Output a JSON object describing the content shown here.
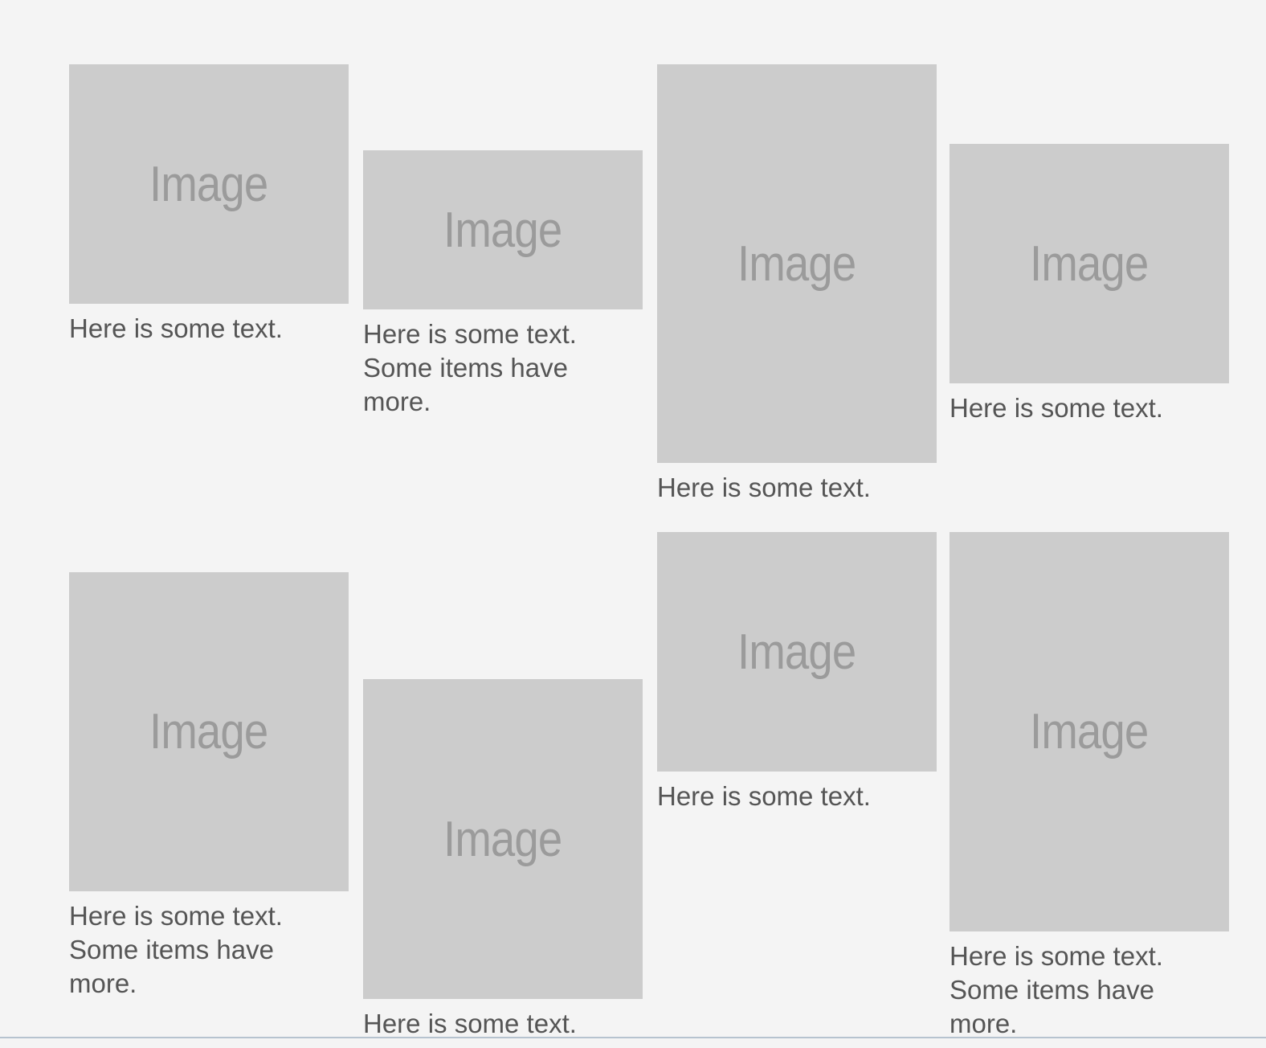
{
  "cards": [
    {
      "image_label": "Image",
      "caption": "Here is some text."
    },
    {
      "image_label": "Image",
      "caption": "Here is some text.\nSome items have\nmore."
    },
    {
      "image_label": "Image",
      "caption": "Here is some text."
    },
    {
      "image_label": "Image",
      "caption": "Here is some text."
    },
    {
      "image_label": "Image",
      "caption": "Here is some text.\nSome items have\nmore."
    },
    {
      "image_label": "Image",
      "caption": "Here is some text."
    },
    {
      "image_label": "Image",
      "caption": "Here is some text."
    },
    {
      "image_label": "Image",
      "caption": "Here is some text.\nSome items have\nmore."
    }
  ],
  "colors": {
    "background": "#f4f4f4",
    "placeholder": "#cccccc",
    "placeholder_text": "#9b9b9b",
    "caption_text": "#555555"
  }
}
